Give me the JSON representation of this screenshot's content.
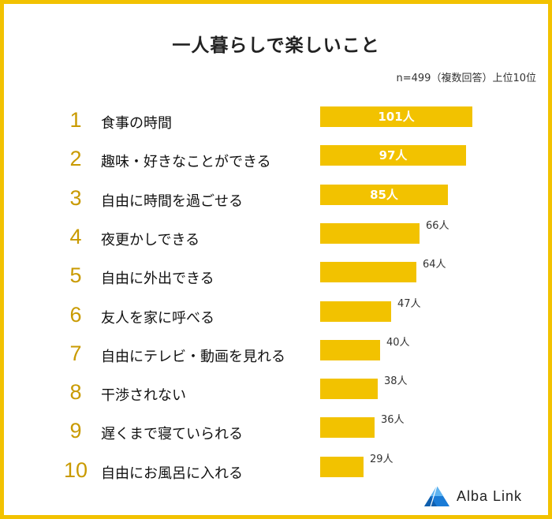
{
  "title": "一人暮らしで楽しいこと",
  "note": "n=499（複数回答）上位10位",
  "colors": {
    "bar": "#f2c200",
    "rank": "#c99a00",
    "border": "#f2c200"
  },
  "chart_data": {
    "type": "bar",
    "orientation": "horizontal",
    "title": "一人暮らしで楽しいこと",
    "unit": "人",
    "ranks": [
      "1",
      "2",
      "3",
      "4",
      "5",
      "6",
      "7",
      "8",
      "9",
      "10"
    ],
    "categories": [
      "食事の時間",
      "趣味・好きなことができる",
      "自由に時間を過ごせる",
      "夜更かしできる",
      "自由に外出できる",
      "友人を家に呼べる",
      "自由にテレビ・動画を見れる",
      "干渉されない",
      "遅くまで寝ていられる",
      "自由にお風呂に入れる"
    ],
    "values": [
      101,
      97,
      85,
      66,
      64,
      47,
      40,
      38,
      36,
      29
    ],
    "value_labels": [
      "101人",
      "97人",
      "85人",
      "66人",
      "64人",
      "47人",
      "40人",
      "38人",
      "36人",
      "29人"
    ],
    "xlim": [
      0,
      101
    ],
    "inside_label_count": 3
  },
  "logo": {
    "text": "Alba Link",
    "icon": "alba-link-logo-icon"
  }
}
